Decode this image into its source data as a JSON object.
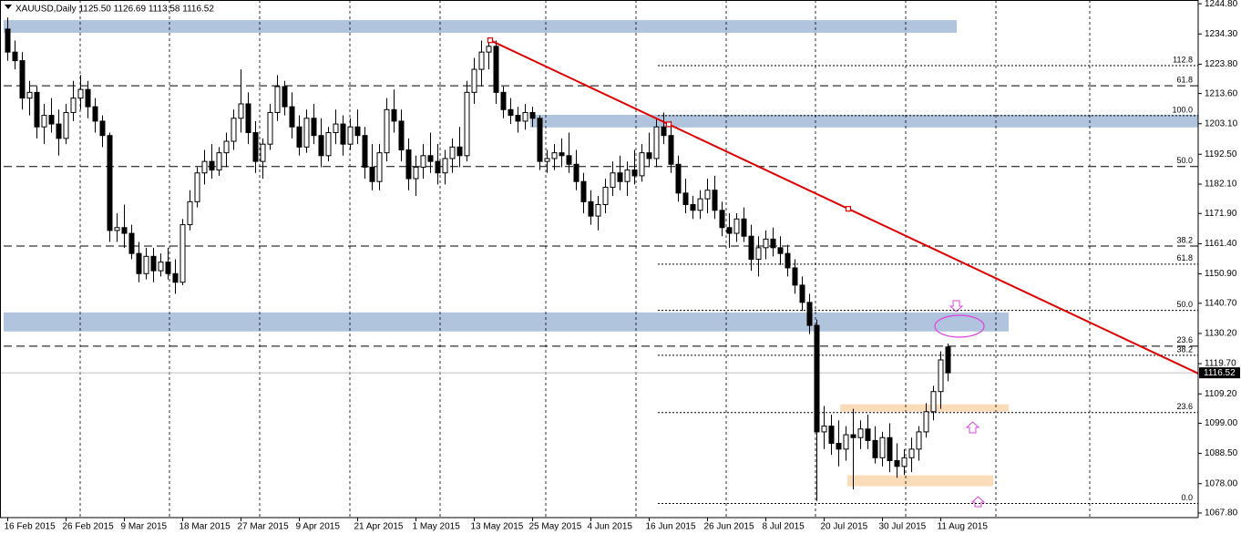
{
  "chart_data": {
    "type": "candlestick",
    "title": "XAUUSD,Daily  1125.50 1126.69 1113.58 1116.52",
    "categories": [
      "16 Feb 2015",
      null,
      null,
      null,
      null,
      null,
      null,
      null,
      "26 Feb 2015",
      null,
      null,
      null,
      null,
      null,
      null,
      null,
      "9 Mar 2015",
      null,
      null,
      null,
      null,
      null,
      null,
      null,
      "18 Mar 2015",
      null,
      null,
      null,
      null,
      null,
      null,
      null,
      "27 Mar 2015",
      null,
      null,
      null,
      null,
      null,
      null,
      null,
      "9 Apr 2015",
      null,
      null,
      null,
      null,
      null,
      null,
      null,
      "21 Apr 2015",
      null,
      null,
      null,
      null,
      null,
      null,
      null,
      "1 May 2015",
      null,
      null,
      null,
      null,
      null,
      null,
      null,
      "13 May 2015",
      null,
      null,
      null,
      null,
      null,
      null,
      null,
      "25 May 2015",
      null,
      null,
      null,
      null,
      null,
      null,
      null,
      "4 Jun 2015",
      null,
      null,
      null,
      null,
      null,
      null,
      null,
      "16 Jun 2015",
      null,
      null,
      null,
      null,
      null,
      null,
      null,
      "26 Jun 2015",
      null,
      null,
      null,
      null,
      null,
      null,
      null,
      "8 Jul 2015",
      null,
      null,
      null,
      null,
      null,
      null,
      null,
      "20 Jul 2015",
      null,
      null,
      null,
      null,
      null,
      null,
      null,
      "30 Jul 2015",
      null,
      null,
      null,
      null,
      null,
      null,
      null,
      "11 Aug 2015",
      null
    ],
    "open": [
      1236,
      1228,
      1225,
      1212,
      1214,
      1202,
      1206,
      1203,
      1198,
      1207,
      1212,
      1215,
      1209,
      1204,
      1199,
      1166,
      1167,
      1165,
      1158,
      1151,
      1157,
      1152,
      1155,
      1151,
      1148,
      1168,
      1176,
      1186,
      1190,
      1187,
      1193,
      1197,
      1205,
      1210,
      1200,
      1190,
      1196,
      1207,
      1216,
      1209,
      1202,
      1195,
      1205,
      1199,
      1192,
      1200,
      1203,
      1196,
      1202,
      1199,
      1188,
      1183,
      1193,
      1208,
      1204,
      1194,
      1184,
      1188,
      1192,
      1190,
      1186,
      1191,
      1195,
      1192,
      1214,
      1222,
      1228,
      1230,
      1214,
      1208,
      1206,
      1204,
      1207,
      1205,
      1190,
      1191,
      1193,
      1192,
      1189,
      1183,
      1176,
      1171,
      1175,
      1181,
      1186,
      1183,
      1187,
      1185,
      1193,
      1191,
      1202,
      1199,
      1189,
      1179,
      1175,
      1173,
      1177,
      1180,
      1173,
      1167,
      1165,
      1170,
      1164,
      1156,
      1160,
      1163,
      1160,
      1158,
      1153,
      1147,
      1141,
      1133,
      1096,
      1098,
      1092,
      1090,
      1095,
      1094,
      1097,
      1093,
      1087,
      1094,
      1086,
      1084,
      1087,
      1090,
      1096,
      1103,
      1110,
      1125.5
    ],
    "high": [
      1240,
      1232,
      1228,
      1218,
      1216,
      1210,
      1212,
      1208,
      1210,
      1218,
      1220,
      1218,
      1212,
      1206,
      1200,
      1172,
      1175,
      1168,
      1162,
      1160,
      1160,
      1158,
      1160,
      1156,
      1170,
      1180,
      1188,
      1194,
      1196,
      1195,
      1200,
      1208,
      1222,
      1214,
      1204,
      1198,
      1210,
      1220,
      1218,
      1214,
      1206,
      1208,
      1210,
      1205,
      1202,
      1208,
      1206,
      1205,
      1208,
      1202,
      1196,
      1196,
      1212,
      1215,
      1208,
      1198,
      1192,
      1196,
      1200,
      1196,
      1194,
      1198,
      1202,
      1218,
      1226,
      1232,
      1233,
      1232,
      1216,
      1212,
      1209,
      1210,
      1209,
      1206,
      1194,
      1196,
      1198,
      1200,
      1194,
      1186,
      1180,
      1178,
      1184,
      1190,
      1192,
      1190,
      1194,
      1196,
      1200,
      1205,
      1207,
      1204,
      1192,
      1184,
      1178,
      1180,
      1184,
      1185,
      1176,
      1172,
      1172,
      1174,
      1168,
      1164,
      1166,
      1167,
      1164,
      1161,
      1156,
      1150,
      1144,
      1135,
      1105,
      1102,
      1100,
      1098,
      1104,
      1100,
      1102,
      1098,
      1096,
      1099,
      1092,
      1090,
      1094,
      1098,
      1106,
      1112,
      1124,
      1126.69
    ],
    "low": [
      1225,
      1222,
      1208,
      1206,
      1198,
      1196,
      1200,
      1192,
      1196,
      1204,
      1208,
      1205,
      1200,
      1195,
      1162,
      1162,
      1160,
      1156,
      1148,
      1149,
      1148,
      1150,
      1149,
      1144,
      1147,
      1166,
      1174,
      1182,
      1184,
      1185,
      1188,
      1194,
      1200,
      1196,
      1186,
      1184,
      1194,
      1204,
      1206,
      1198,
      1192,
      1193,
      1196,
      1188,
      1190,
      1196,
      1192,
      1194,
      1196,
      1184,
      1180,
      1180,
      1190,
      1200,
      1190,
      1180,
      1178,
      1184,
      1186,
      1182,
      1182,
      1186,
      1188,
      1190,
      1210,
      1216,
      1222,
      1210,
      1205,
      1203,
      1200,
      1201,
      1202,
      1187,
      1186,
      1187,
      1188,
      1186,
      1180,
      1172,
      1168,
      1166,
      1172,
      1178,
      1180,
      1178,
      1182,
      1183,
      1188,
      1188,
      1196,
      1186,
      1176,
      1172,
      1170,
      1170,
      1172,
      1170,
      1164,
      1160,
      1162,
      1162,
      1152,
      1150,
      1156,
      1157,
      1154,
      1150,
      1144,
      1138,
      1130,
      1072,
      1090,
      1088,
      1084,
      1086,
      1076,
      1090,
      1090,
      1085,
      1084,
      1082,
      1080,
      1081,
      1082,
      1086,
      1094,
      1100,
      1104,
      1113.58
    ],
    "close": [
      1228,
      1225,
      1212,
      1214,
      1202,
      1206,
      1203,
      1198,
      1207,
      1212,
      1215,
      1209,
      1204,
      1199,
      1166,
      1167,
      1165,
      1158,
      1151,
      1157,
      1152,
      1155,
      1151,
      1148,
      1168,
      1176,
      1186,
      1190,
      1187,
      1193,
      1197,
      1205,
      1210,
      1200,
      1190,
      1196,
      1207,
      1216,
      1209,
      1202,
      1195,
      1205,
      1199,
      1192,
      1200,
      1203,
      1196,
      1202,
      1199,
      1188,
      1183,
      1193,
      1208,
      1204,
      1194,
      1184,
      1188,
      1192,
      1190,
      1186,
      1191,
      1195,
      1192,
      1214,
      1222,
      1228,
      1230,
      1214,
      1208,
      1206,
      1204,
      1207,
      1205,
      1190,
      1191,
      1193,
      1192,
      1189,
      1183,
      1176,
      1171,
      1175,
      1181,
      1186,
      1183,
      1187,
      1185,
      1193,
      1191,
      1202,
      1199,
      1189,
      1179,
      1175,
      1173,
      1177,
      1180,
      1173,
      1167,
      1165,
      1170,
      1164,
      1156,
      1160,
      1163,
      1160,
      1158,
      1153,
      1147,
      1141,
      1133,
      1096,
      1098,
      1092,
      1090,
      1095,
      1094,
      1097,
      1093,
      1087,
      1094,
      1086,
      1084,
      1087,
      1090,
      1096,
      1103,
      1110,
      1121,
      1116.52
    ],
    "ylim": [
      1066.2,
      1246.1
    ],
    "yticks": [
      {
        "value": 1244.8,
        "label": "1244.80"
      },
      {
        "value": 1234.3,
        "label": "1234.30"
      },
      {
        "value": 1223.8,
        "label": "1223.80"
      },
      {
        "value": 1213.6,
        "label": "1213.60"
      },
      {
        "value": 1203.1,
        "label": "1203.10"
      },
      {
        "value": 1192.5,
        "label": "1192.50"
      },
      {
        "value": 1182.1,
        "label": "1182.10"
      },
      {
        "value": 1171.9,
        "label": "1171.90"
      },
      {
        "value": 1161.4,
        "label": "1161.40"
      },
      {
        "value": 1150.9,
        "label": "1150.90"
      },
      {
        "value": 1140.7,
        "label": "1140.70"
      },
      {
        "value": 1130.2,
        "label": "1130.20"
      },
      {
        "value": 1119.7,
        "label": "1119.70"
      },
      {
        "value": 1109.2,
        "label": "1109.20"
      },
      {
        "value": 1099,
        "label": "1099.00"
      },
      {
        "value": 1088.5,
        "label": "1088.50"
      },
      {
        "value": 1078,
        "label": "1078.00"
      },
      {
        "value": 1067.8,
        "label": "1067.80"
      }
    ],
    "current_price": {
      "value": 1116.52,
      "label": "1116.52"
    },
    "fib_levels": [
      {
        "label": "61.8",
        "price": 1216.3,
        "style": "dashed"
      },
      {
        "label": "50.0",
        "price": 1188.2,
        "style": "dashed"
      },
      {
        "label": "38.2",
        "price": 1160.6,
        "style": "dashed"
      },
      {
        "label": "23.6",
        "price": 1125.8,
        "style": "dashed"
      },
      {
        "label": "112.8",
        "price": 1223.3,
        "style": "dotted"
      },
      {
        "label": "100.0",
        "price": 1205.9,
        "style": "dotted"
      },
      {
        "label": "61.8",
        "price": 1154.3,
        "style": "dotted"
      },
      {
        "label": "50.0",
        "price": 1138.2,
        "style": "dotted"
      },
      {
        "label": "38.2",
        "price": 1122.6,
        "style": "dotted"
      },
      {
        "label": "23.6",
        "price": 1102.7,
        "style": "dotted"
      },
      {
        "label": "0.0",
        "price": 1071.1,
        "style": "dotted"
      }
    ],
    "zones": [
      {
        "color": "#b0c4de",
        "prices": [
          1239.1,
          1234.7
        ]
      },
      {
        "color": "#b0c4de",
        "prices": [
          1206.2,
          1201.8
        ]
      },
      {
        "color": "#b0c4de",
        "prices": [
          1137.5,
          1130.9
        ]
      },
      {
        "color": "#fbdcb8",
        "prices": [
          1105.6,
          1103.0
        ]
      },
      {
        "color": "#fbdcb8",
        "prices": [
          1080.9,
          1077.1
        ]
      }
    ],
    "trendline": {
      "color": "#e00000",
      "prices": [
        1232.1,
        1116.3
      ]
    },
    "bull_color": "#ffffff",
    "bear_color": "#000000"
  }
}
